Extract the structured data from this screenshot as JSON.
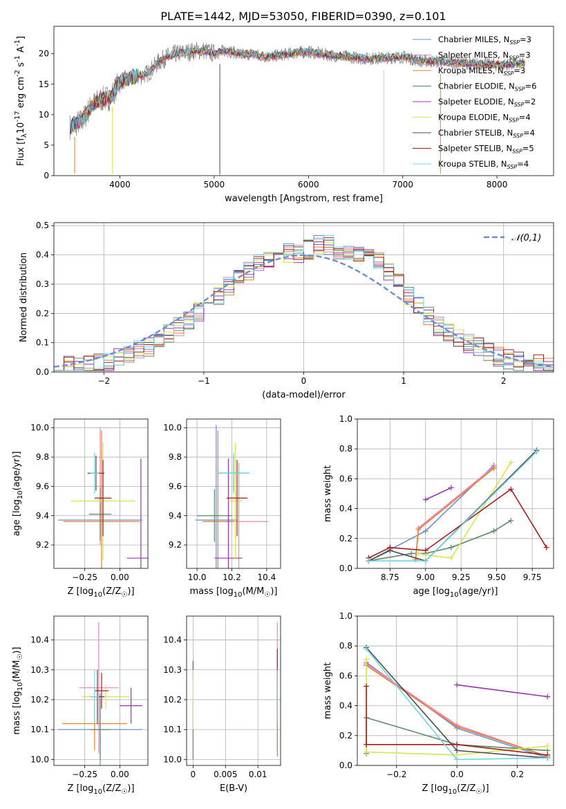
{
  "figure": {
    "title": "PLATE=1442, MJD=53050, FIBERID=0390, z=0.101"
  },
  "colors": {
    "Chabrier MILES": "#6a8fd1",
    "Salpeter MILES": "#e983c0",
    "Kroupa MILES": "#ee7d27",
    "Chabrier ELODIE": "#5a8a6a",
    "Salpeter ELODIE": "#9b30b8",
    "Kroupa ELODIE": "#d6e64c",
    "Chabrier STELIB": "#4d4d4d",
    "Salpeter STELIB": "#a81a1a",
    "Kroupa STELIB": "#6fd5e6",
    "data": "#808080",
    "normal": "#6a8fd1"
  },
  "chart_data": [
    {
      "id": "spectrum",
      "type": "line",
      "xlabel": "wavelength [Angstrom, rest frame]",
      "ylabel": "Flux [f_λ10^{-17} erg cm^{-2} s^{-1} A^{-1}]",
      "xlim": [
        3300,
        8600
      ],
      "ylim": [
        0,
        24.5
      ],
      "xticks": [
        4000,
        5000,
        6000,
        7000,
        8000
      ],
      "yticks": [
        0,
        5,
        10,
        15,
        20
      ],
      "grid": false,
      "legend_position": "upper-right",
      "legend": [
        {
          "model": "Chabrier MILES",
          "nssp": "3"
        },
        {
          "model": "Salpeter MILES",
          "nssp": "3"
        },
        {
          "model": "Kroupa MILES",
          "nssp": "3"
        },
        {
          "model": "Chabrier ELODIE",
          "nssp": "6"
        },
        {
          "model": "Salpeter ELODIE",
          "nssp": "2"
        },
        {
          "model": "Kroupa ELODIE",
          "nssp": "4"
        },
        {
          "model": "Chabrier STELIB",
          "nssp": "4"
        },
        {
          "model": "Salpeter STELIB",
          "nssp": "5"
        },
        {
          "model": "Kroupa STELIB",
          "nssp": "4"
        }
      ],
      "continuum": {
        "x": [
          3470,
          3600,
          3700,
          3800,
          3900,
          4000,
          4100,
          4200,
          4300,
          4400,
          4500,
          4600,
          4700,
          4800,
          4900,
          5000,
          5100,
          5200,
          5300,
          5400,
          5500,
          5600,
          5700,
          5800,
          5900,
          6000,
          6200,
          6400,
          6600,
          6800,
          7000,
          7200,
          7400,
          7600,
          7800,
          8000,
          8200,
          8300
        ],
        "y": [
          8.0,
          9.0,
          11.5,
          12.5,
          12.8,
          15.5,
          15.8,
          16.3,
          16.8,
          18.5,
          19.5,
          20.0,
          20.2,
          20.5,
          20.5,
          20.0,
          20.5,
          20.3,
          19.8,
          20.0,
          19.6,
          19.5,
          19.8,
          20.0,
          20.2,
          20.3,
          19.8,
          19.5,
          19.2,
          19.3,
          19.5,
          18.8,
          18.7,
          18.5,
          18.3,
          18.2,
          18.3,
          18.4
        ]
      },
      "dips": [
        {
          "x": 3520,
          "y": 0.3
        },
        {
          "x": 3920,
          "y": 0.3
        },
        {
          "x": 5060,
          "y": 0.3
        },
        {
          "x": 6800,
          "y": 0.3
        },
        {
          "x": 7400,
          "y": 0.3
        }
      ]
    },
    {
      "id": "residuals",
      "type": "histogram",
      "xlabel": "(data-model)/error",
      "ylabel": "Normed distribution",
      "xlim": [
        -2.5,
        2.5
      ],
      "ylim": [
        0,
        0.51
      ],
      "xticks": [
        -2,
        -1,
        0,
        1,
        2
      ],
      "yticks": [
        0.0,
        0.1,
        0.2,
        0.3,
        0.4,
        0.5
      ],
      "grid": true,
      "legend_position": "upper-right",
      "normal_label": "𝒩(0,1)",
      "bin_width": 0.1,
      "profile": {
        "x": [
          -2.5,
          -2.0,
          -1.5,
          -1.0,
          -0.7,
          -0.5,
          -0.3,
          0.0,
          0.2,
          0.5,
          0.8,
          1.0,
          1.3,
          1.5,
          2.0,
          2.5
        ],
        "y": [
          0.015,
          0.03,
          0.09,
          0.22,
          0.31,
          0.36,
          0.4,
          0.41,
          0.44,
          0.4,
          0.37,
          0.28,
          0.17,
          0.12,
          0.045,
          0.015
        ]
      }
    },
    {
      "id": "age-vs-Z",
      "type": "errorbar",
      "xlabel": "Z [log10(Z/Z☉)]",
      "ylabel": "age  [log10(age/yr)]",
      "xlim": [
        -0.47,
        0.2
      ],
      "ylim": [
        9.04,
        10.06
      ],
      "xticks": [
        -0.25,
        0.0
      ],
      "yticks": [
        9.2,
        9.4,
        9.6,
        9.8,
        10.0
      ],
      "grid": true,
      "points": [
        {
          "model": "Chabrier MILES",
          "x": -0.14,
          "xerr": 0.3,
          "y": 9.37,
          "yerr": 0.1
        },
        {
          "model": "Salpeter MILES",
          "x": -0.14,
          "xerr": 0.02,
          "y": 9.6,
          "yerr": 0.4
        },
        {
          "model": "Kroupa MILES",
          "x": -0.13,
          "xerr": 0.27,
          "y": 9.36,
          "yerr": 0.62
        },
        {
          "model": "Chabrier ELODIE",
          "x": -0.14,
          "xerr": 0.08,
          "y": 9.41,
          "yerr": 0.18
        },
        {
          "model": "Salpeter ELODIE",
          "x": 0.15,
          "xerr": 0.1,
          "y": 9.11,
          "yerr": 0.68
        },
        {
          "model": "Kroupa ELODIE",
          "x": -0.12,
          "xerr": 0.23,
          "y": 9.5,
          "yerr": 0.4
        },
        {
          "model": "Chabrier STELIB",
          "x": -0.17,
          "xerr": 0.06,
          "y": 9.69,
          "yerr": 0.12
        },
        {
          "model": "Salpeter STELIB",
          "x": -0.12,
          "xerr": 0.06,
          "y": 9.52,
          "yerr": 0.26
        },
        {
          "model": "Kroupa STELIB",
          "x": -0.18,
          "xerr": 0.03,
          "y": 9.69,
          "yerr": 0.14
        }
      ]
    },
    {
      "id": "age-vs-mass",
      "type": "errorbar",
      "xlabel": "mass [log10(M/M☉)]",
      "ylabel": "",
      "xlim": [
        9.94,
        10.48
      ],
      "ylim": [
        9.04,
        10.06
      ],
      "xticks": [
        10.0,
        10.2,
        10.4
      ],
      "yticks": [
        9.2,
        9.4,
        9.6,
        9.8,
        10.0
      ],
      "grid": true,
      "points": [
        {
          "model": "Chabrier MILES",
          "x": 10.11,
          "xerr": 0.12,
          "y": 9.37,
          "yerr": 0.65
        },
        {
          "model": "Salpeter MILES",
          "x": 10.24,
          "xerr": 0.17,
          "y": 9.36,
          "yerr": 0.4
        },
        {
          "model": "Kroupa MILES",
          "x": 10.12,
          "xerr": 0.09,
          "y": 9.36,
          "yerr": 0.62
        },
        {
          "model": "Chabrier ELODIE",
          "x": 10.1,
          "xerr": 0.1,
          "y": 9.4,
          "yerr": 0.18
        },
        {
          "model": "Salpeter ELODIE",
          "x": 10.18,
          "xerr": 0.08,
          "y": 9.11,
          "yerr": 0.68
        },
        {
          "model": "Kroupa ELODIE",
          "x": 10.22,
          "xerr": 0.04,
          "y": 9.5,
          "yerr": 0.4
        },
        {
          "model": "Chabrier STELIB",
          "x": 10.21,
          "xerr": 0.09,
          "y": 9.69,
          "yerr": 0.12
        },
        {
          "model": "Salpeter STELIB",
          "x": 10.23,
          "xerr": 0.06,
          "y": 9.52,
          "yerr": 0.26
        },
        {
          "model": "Kroupa STELIB",
          "x": 10.21,
          "xerr": 0.09,
          "y": 9.69,
          "yerr": 0.14
        }
      ]
    },
    {
      "id": "weight-vs-age",
      "type": "line",
      "xlabel": "age  [log10(age/yr)]",
      "ylabel": "mass weight",
      "xlim": [
        8.52,
        9.9
      ],
      "ylim": [
        0,
        1
      ],
      "xticks": [
        8.75,
        9.0,
        9.25,
        9.5,
        9.75
      ],
      "yticks": [
        0.0,
        0.2,
        0.4,
        0.6,
        0.8,
        1.0
      ],
      "grid": true,
      "series": [
        {
          "model": "Chabrier MILES",
          "x": [
            8.6,
            9.0,
            9.48
          ],
          "y": [
            0.05,
            0.25,
            0.69
          ]
        },
        {
          "model": "Salpeter MILES",
          "x": [
            8.93,
            8.95,
            9.48
          ],
          "y": [
            0.06,
            0.27,
            0.68
          ]
        },
        {
          "model": "Kroupa MILES",
          "x": [
            8.93,
            8.95,
            9.48
          ],
          "y": [
            0.06,
            0.26,
            0.67
          ]
        },
        {
          "model": "Chabrier ELODIE",
          "x": [
            8.6,
            8.9,
            9.0,
            9.18,
            9.48,
            9.6
          ],
          "y": [
            0.05,
            0.1,
            0.1,
            0.14,
            0.25,
            0.32
          ]
        },
        {
          "model": "Salpeter ELODIE",
          "x": [
            9.0,
            9.18
          ],
          "y": [
            0.46,
            0.54
          ]
        },
        {
          "model": "Kroupa ELODIE",
          "x": [
            8.95,
            9.0,
            9.18,
            9.6
          ],
          "y": [
            0.1,
            0.09,
            0.07,
            0.71
          ]
        },
        {
          "model": "Chabrier STELIB",
          "x": [
            8.6,
            8.75,
            9.0,
            9.78
          ],
          "y": [
            0.05,
            0.12,
            0.05,
            0.79
          ]
        },
        {
          "model": "Salpeter STELIB",
          "x": [
            8.6,
            8.75,
            9.0,
            9.6,
            9.85
          ],
          "y": [
            0.07,
            0.14,
            0.12,
            0.53,
            0.14
          ]
        },
        {
          "model": "Kroupa STELIB",
          "x": [
            8.6,
            9.0,
            9.78
          ],
          "y": [
            0.05,
            0.05,
            0.78
          ]
        }
      ]
    },
    {
      "id": "mass-vs-Z",
      "type": "errorbar",
      "xlabel": "Z [log10(Z/Z☉)]",
      "ylabel": "mass [log10(M/M☉)]",
      "xlim": [
        -0.47,
        0.2
      ],
      "ylim": [
        9.98,
        10.48
      ],
      "xticks": [
        -0.25,
        0.0
      ],
      "yticks": [
        10.0,
        10.1,
        10.2,
        10.3,
        10.4
      ],
      "grid": true,
      "points": [
        {
          "model": "Chabrier MILES",
          "x": -0.14,
          "xerr": 0.3,
          "y": 10.1,
          "yerr": 0.12
        },
        {
          "model": "Salpeter MILES",
          "x": -0.15,
          "xerr": 0.14,
          "y": 10.24,
          "yerr": 0.22
        },
        {
          "model": "Kroupa MILES",
          "x": -0.18,
          "xerr": 0.23,
          "y": 10.12,
          "yerr": 0.09
        },
        {
          "model": "Chabrier ELODIE",
          "x": -0.14,
          "xerr": 0.07,
          "y": 10.1,
          "yerr": 0.1
        },
        {
          "model": "Salpeter ELODIE",
          "x": 0.08,
          "xerr": 0.08,
          "y": 10.18,
          "yerr": 0.06
        },
        {
          "model": "Kroupa ELODIE",
          "x": -0.1,
          "xerr": 0.17,
          "y": 10.21,
          "yerr": 0.04
        },
        {
          "model": "Chabrier STELIB",
          "x": -0.16,
          "xerr": 0.05,
          "y": 10.21,
          "yerr": 0.09
        },
        {
          "model": "Salpeter STELIB",
          "x": -0.13,
          "xerr": 0.05,
          "y": 10.23,
          "yerr": 0.06
        },
        {
          "model": "Kroupa STELIB",
          "x": -0.18,
          "xerr": 0.03,
          "y": 10.21,
          "yerr": 0.09
        }
      ]
    },
    {
      "id": "mass-vs-ebv",
      "type": "errorbar",
      "xlabel": "E(B-V)",
      "ylabel": "",
      "xlim": [
        -0.001,
        0.0135
      ],
      "ylim": [
        9.98,
        10.48
      ],
      "xticks": [
        0.0,
        0.005,
        0.01
      ],
      "yticks": [
        10.0,
        10.1,
        10.2,
        10.3,
        10.4
      ],
      "grid": true,
      "points": [
        {
          "model": "Chabrier MILES",
          "x": 0.013,
          "xerr": 0,
          "y": 10.11,
          "yerr": 0.1
        },
        {
          "model": "Salpeter MILES",
          "x": 0.013,
          "xerr": 0,
          "y": 10.3,
          "yerr": 0.16
        },
        {
          "model": "Kroupa MILES",
          "x": 0.013,
          "xerr": 0,
          "y": 10.12,
          "yerr": 0.09
        },
        {
          "model": "Chabrier ELODIE",
          "x": 0.0,
          "xerr": 0,
          "y": 10.1,
          "yerr": 0.1
        },
        {
          "model": "Salpeter ELODIE",
          "x": 0.0,
          "xerr": 0,
          "y": 10.3,
          "yerr": 0.03
        },
        {
          "model": "Kroupa ELODIE",
          "x": 0.0,
          "xerr": 0,
          "y": 10.2,
          "yerr": 0.1
        },
        {
          "model": "Chabrier STELIB",
          "x": 0.013,
          "xerr": 0,
          "y": 10.21,
          "yerr": 0.09
        },
        {
          "model": "Salpeter STELIB",
          "x": 0.013,
          "xerr": 0,
          "y": 10.3,
          "yerr": 0.07
        },
        {
          "model": "Kroupa STELIB",
          "x": 0.013,
          "xerr": 0,
          "y": 10.21,
          "yerr": 0.09
        }
      ]
    },
    {
      "id": "weight-vs-Z",
      "type": "line",
      "xlabel": "Z [log10(Z/Z☉)]",
      "ylabel": "mass weight",
      "xlim": [
        -0.33,
        0.32
      ],
      "ylim": [
        0,
        1
      ],
      "xticks": [
        -0.2,
        0.0,
        0.2
      ],
      "yticks": [
        0.0,
        0.2,
        0.4,
        0.6,
        0.8,
        1.0
      ],
      "grid": true,
      "series": [
        {
          "model": "Chabrier MILES",
          "x": [
            -0.3,
            0.0,
            0.3
          ],
          "y": [
            0.69,
            0.25,
            0.05
          ]
        },
        {
          "model": "Salpeter MILES",
          "x": [
            -0.3,
            0.0,
            0.3
          ],
          "y": [
            0.68,
            0.27,
            0.06
          ]
        },
        {
          "model": "Kroupa MILES",
          "x": [
            -0.3,
            0.0,
            0.3
          ],
          "y": [
            0.67,
            0.26,
            0.06
          ]
        },
        {
          "model": "Chabrier ELODIE",
          "x": [
            -0.3,
            -0.3,
            0.0,
            0.3
          ],
          "y": [
            0.08,
            0.32,
            0.14,
            0.1
          ]
        },
        {
          "model": "Salpeter ELODIE",
          "x": [
            0.0,
            0.3
          ],
          "y": [
            0.54,
            0.46
          ]
        },
        {
          "model": "Kroupa ELODIE",
          "x": [
            -0.3,
            -0.3,
            0.0,
            0.3
          ],
          "y": [
            0.71,
            0.09,
            0.07,
            0.13
          ]
        },
        {
          "model": "Chabrier STELIB",
          "x": [
            -0.3,
            0.0,
            0.3
          ],
          "y": [
            0.79,
            0.1,
            0.05
          ]
        },
        {
          "model": "Salpeter STELIB",
          "x": [
            -0.3,
            -0.3,
            0.0,
            0.3
          ],
          "y": [
            0.53,
            0.14,
            0.14,
            0.07
          ]
        },
        {
          "model": "Kroupa STELIB",
          "x": [
            -0.3,
            0.0,
            0.3
          ],
          "y": [
            0.78,
            0.04,
            0.05
          ]
        }
      ]
    }
  ]
}
